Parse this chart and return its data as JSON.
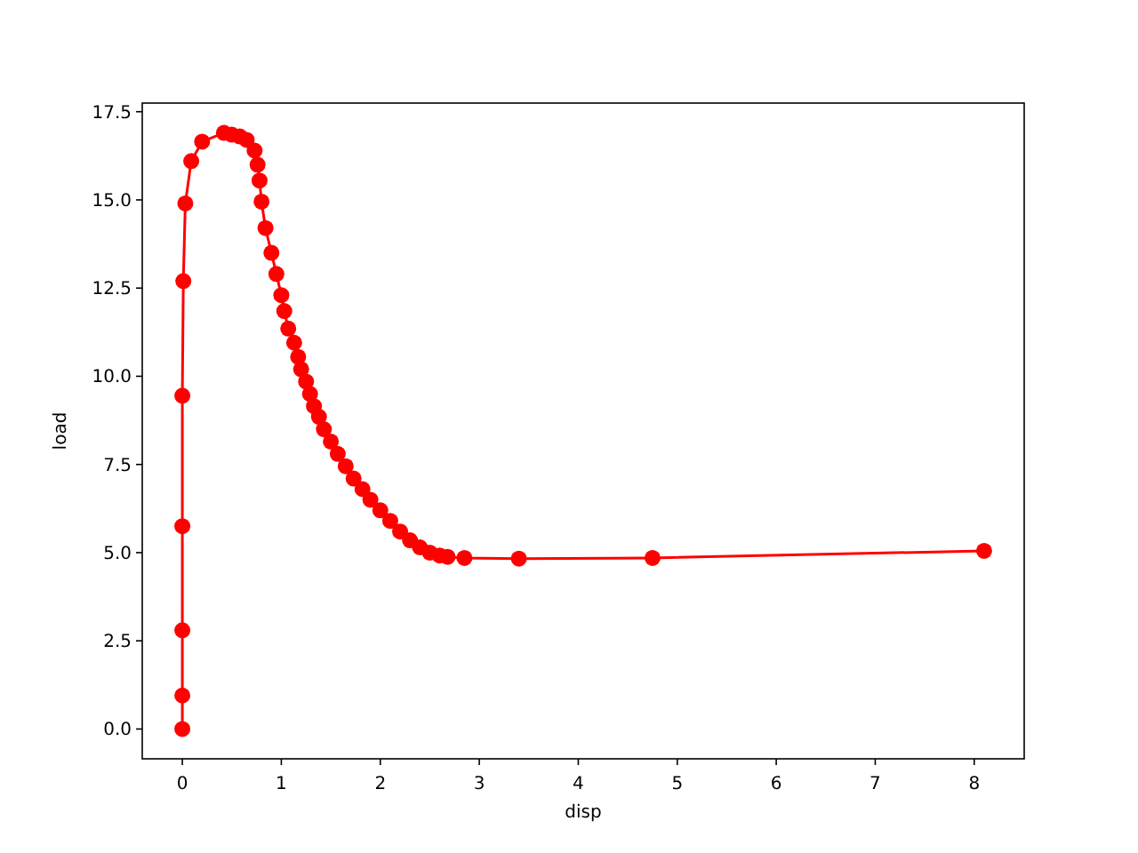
{
  "chart_data": {
    "type": "line",
    "xlabel": "disp",
    "ylabel": "load",
    "marker": "circle",
    "line_style": "solid",
    "xlim": [
      -0.405,
      8.505
    ],
    "ylim": [
      -0.845,
      17.745
    ],
    "xticks": [
      0,
      1,
      2,
      3,
      4,
      5,
      6,
      7,
      8
    ],
    "yticks": [
      {
        "value": 0,
        "label": "0.0"
      },
      {
        "value": 2.5,
        "label": "2.5"
      },
      {
        "value": 5,
        "label": "5.0"
      },
      {
        "value": 7.5,
        "label": "7.5"
      },
      {
        "value": 10,
        "label": "10.0"
      },
      {
        "value": 12.5,
        "label": "12.5"
      },
      {
        "value": 15,
        "label": "15.0"
      },
      {
        "value": 17.5,
        "label": "17.5"
      }
    ],
    "series": [
      {
        "color": "#ff0000",
        "x": [
          0,
          0,
          0,
          0,
          0,
          0.01,
          0.03,
          0.09,
          0.2,
          0.42,
          0.5,
          0.58,
          0.65,
          0.73,
          0.76,
          0.78,
          0.8,
          0.84,
          0.9,
          0.95,
          1.0,
          1.03,
          1.07,
          1.13,
          1.17,
          1.2,
          1.25,
          1.29,
          1.33,
          1.38,
          1.43,
          1.5,
          1.57,
          1.65,
          1.73,
          1.82,
          1.9,
          2.0,
          2.1,
          2.2,
          2.3,
          2.4,
          2.5,
          2.6,
          2.68,
          2.85,
          3.4,
          4.75,
          8.1
        ],
        "values": [
          0,
          0.95,
          2.8,
          5.75,
          9.45,
          12.7,
          14.9,
          16.1,
          16.65,
          16.9,
          16.85,
          16.8,
          16.7,
          16.4,
          16.0,
          15.55,
          14.95,
          14.2,
          13.5,
          12.9,
          12.3,
          11.85,
          11.35,
          10.95,
          10.55,
          10.2,
          9.85,
          9.5,
          9.15,
          8.85,
          8.5,
          8.15,
          7.8,
          7.45,
          7.1,
          6.8,
          6.5,
          6.2,
          5.9,
          5.6,
          5.35,
          5.15,
          5.0,
          4.92,
          4.88,
          4.85,
          4.83,
          4.85,
          5.05
        ]
      }
    ]
  }
}
